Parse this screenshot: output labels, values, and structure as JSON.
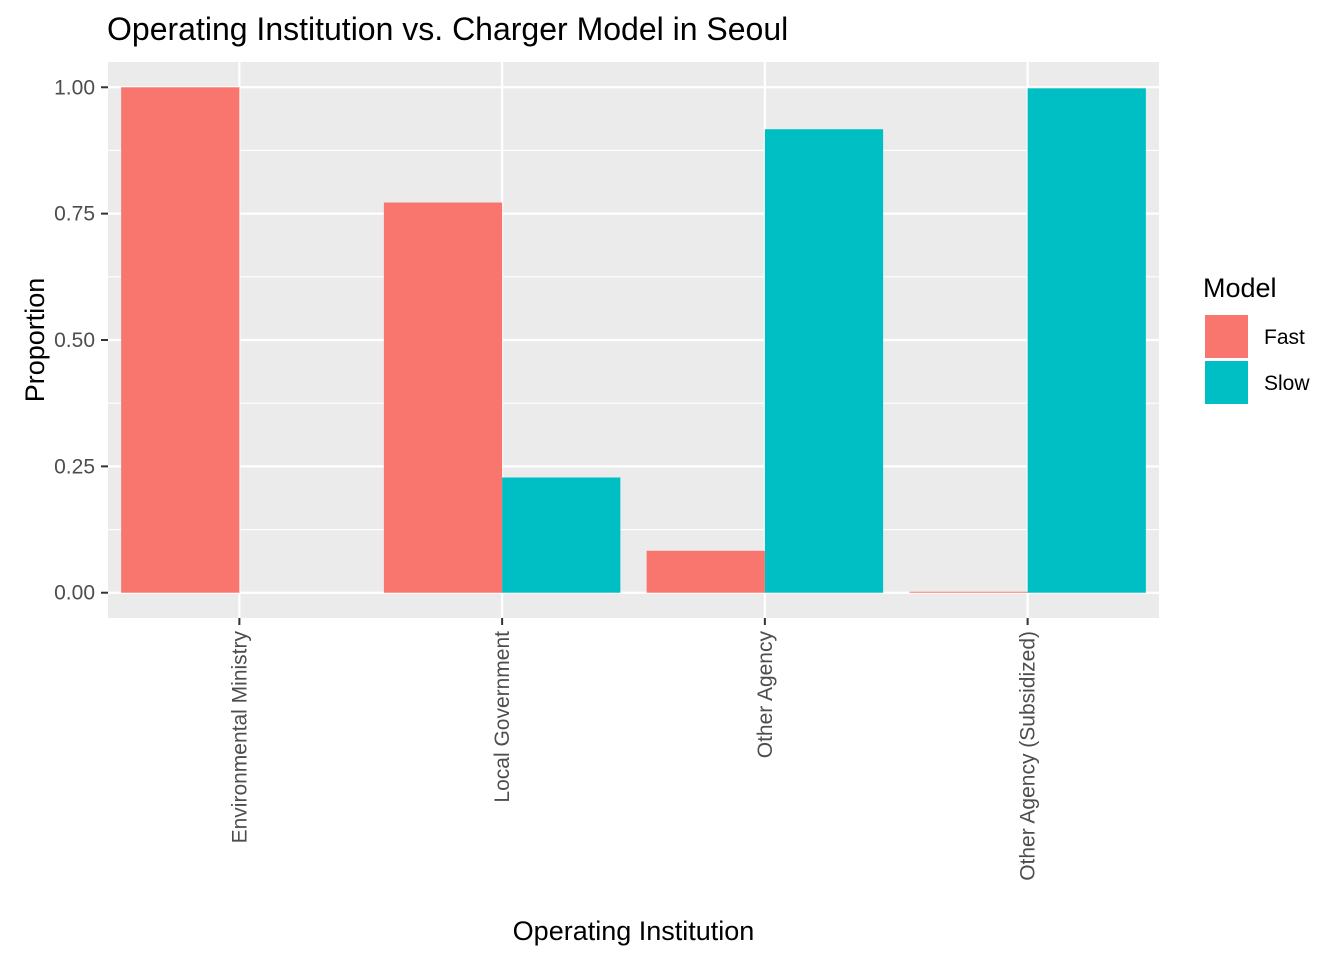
{
  "chart_data": {
    "type": "bar",
    "title": "Operating Institution vs. Charger Model in Seoul",
    "xlabel": "Operating Institution",
    "ylabel": "Proportion",
    "categories": [
      "Environmental Ministry",
      "Local Government",
      "Other Agency",
      "Other Agency (Subsidized)"
    ],
    "series": [
      {
        "name": "Fast",
        "values": [
          1.0,
          0.772,
          0.083,
          0.002
        ],
        "color": "#F8766D"
      },
      {
        "name": "Slow",
        "values": [
          0.0,
          0.228,
          0.917,
          0.998
        ],
        "color": "#00BFC4"
      }
    ],
    "ylim": [
      -0.05,
      1.05
    ],
    "yticks": [
      0.0,
      0.25,
      0.5,
      0.75,
      1.0
    ],
    "ytick_labels": [
      "0.00",
      "0.25",
      "0.50",
      "0.75",
      "1.00"
    ],
    "legend": {
      "title": "Model",
      "position": "right"
    },
    "grid": true,
    "panel_color": "#EBEBEB",
    "grid_color": "#FFFFFF"
  }
}
